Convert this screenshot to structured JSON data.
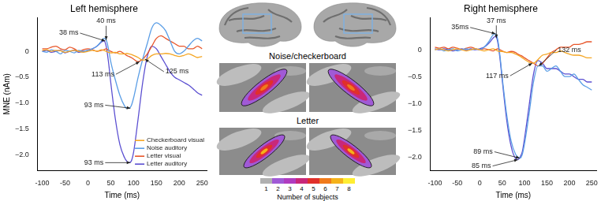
{
  "chart_data": [
    {
      "type": "line",
      "title": "Left hemisphere",
      "x_label": "Time (ms)",
      "y_label": "MNE (nAm)",
      "x": [
        -100,
        -90,
        -80,
        -70,
        -60,
        -50,
        -40,
        -30,
        -20,
        -10,
        0,
        10,
        20,
        30,
        35,
        40,
        45,
        50,
        60,
        70,
        80,
        85,
        90,
        95,
        100,
        110,
        120,
        130,
        140,
        150,
        160,
        170,
        180,
        190,
        200,
        210,
        220,
        230,
        240,
        250
      ],
      "series": [
        {
          "name": "Checkerboard visual",
          "color": "#f5a623",
          "values": [
            0.02,
            0.03,
            0.0,
            0.02,
            0.01,
            -0.02,
            0.0,
            0.02,
            0.0,
            -0.02,
            0.0,
            0.02,
            0.0,
            0.03,
            0.02,
            0.0,
            -0.02,
            -0.03,
            -0.02,
            -0.05,
            -0.05,
            -0.04,
            -0.05,
            -0.06,
            -0.08,
            -0.12,
            -0.17,
            -0.15,
            -0.08,
            -0.05,
            -0.05,
            -0.04,
            -0.05,
            -0.08,
            -0.1,
            -0.08,
            -0.05,
            -0.08,
            -0.12,
            -0.1
          ]
        },
        {
          "name": "Noise auditory",
          "color": "#5b9ee6",
          "values": [
            0.0,
            -0.02,
            0.03,
            0.0,
            -0.05,
            0.02,
            0.0,
            -0.03,
            0.02,
            0.0,
            0.02,
            0.05,
            0.1,
            0.2,
            0.25,
            0.22,
            0.05,
            -0.2,
            -0.55,
            -0.85,
            -1.05,
            -1.1,
            -1.1,
            -1.05,
            -0.9,
            -0.5,
            -0.15,
            0.15,
            0.45,
            0.55,
            0.5,
            0.4,
            0.2,
            0.0,
            -0.05,
            0.0,
            0.1,
            0.2,
            0.25,
            0.2
          ]
        },
        {
          "name": "Letter visual",
          "color": "#e8562a",
          "values": [
            0.05,
            0.05,
            0.08,
            0.1,
            0.05,
            0.03,
            0.08,
            0.05,
            0.0,
            0.03,
            0.05,
            0.03,
            0.0,
            0.02,
            0.03,
            0.05,
            0.02,
            0.0,
            -0.03,
            0.0,
            -0.05,
            -0.08,
            -0.1,
            -0.12,
            -0.15,
            -0.2,
            -0.15,
            -0.05,
            0.1,
            0.25,
            0.3,
            0.25,
            0.2,
            0.15,
            0.1,
            0.1,
            0.05,
            0.05,
            0.1,
            0.05
          ]
        },
        {
          "name": "Letter auditory",
          "color": "#5b4fd1",
          "values": [
            0.0,
            0.02,
            -0.02,
            0.0,
            0.02,
            -0.03,
            0.0,
            0.02,
            -0.02,
            0.0,
            0.02,
            0.05,
            0.1,
            0.18,
            0.2,
            0.1,
            -0.2,
            -0.6,
            -1.3,
            -1.8,
            -2.05,
            -2.12,
            -2.15,
            -2.12,
            -1.95,
            -1.3,
            -0.6,
            -0.1,
            0.1,
            0.05,
            -0.1,
            -0.25,
            -0.4,
            -0.5,
            -0.55,
            -0.6,
            -0.65,
            -0.72,
            -0.8,
            -0.85
          ]
        }
      ],
      "xlim": [
        -110,
        260
      ],
      "xticks": [
        -100,
        -50,
        0,
        50,
        100,
        150,
        200,
        250
      ],
      "ylim": [
        -2.3,
        0.65
      ],
      "yticks": [
        {
          "value": -2,
          "label": "−2.0"
        },
        {
          "value": -1.5,
          "label": "−1.5"
        },
        {
          "value": -1,
          "label": "−1.0"
        },
        {
          "value": -0.5,
          "label": "−0.5"
        },
        0
      ],
      "grid": false,
      "legend": "lower right",
      "annotations": [
        {
          "text": "40 ms",
          "x": 40,
          "y": 0.22
        },
        {
          "text": "38 ms",
          "x": 38,
          "y": 0.2
        },
        {
          "text": "113 ms",
          "x": 113,
          "y": -0.2
        },
        {
          "text": "125 ms",
          "x": 125,
          "y": -0.15
        },
        {
          "text": "93 ms",
          "x": 93,
          "y": -1.1
        },
        {
          "text": "93 ms",
          "x": 93,
          "y": -2.15
        }
      ]
    },
    {
      "type": "line",
      "title": "Right hemisphere",
      "x_label": "Time (ms)",
      "x": [
        -100,
        -90,
        -80,
        -70,
        -60,
        -50,
        -40,
        -30,
        -20,
        -10,
        0,
        10,
        20,
        30,
        35,
        40,
        45,
        50,
        60,
        70,
        80,
        85,
        90,
        95,
        100,
        110,
        120,
        130,
        140,
        150,
        160,
        170,
        180,
        190,
        200,
        210,
        220,
        230,
        240,
        250
      ],
      "series": [
        {
          "color": "#f5a623",
          "values": [
            0.0,
            0.02,
            0.0,
            -0.02,
            0.0,
            0.02,
            0.0,
            -0.02,
            0.0,
            0.02,
            0.0,
            -0.02,
            0.0,
            0.02,
            0.0,
            -0.02,
            -0.03,
            -0.03,
            -0.05,
            -0.05,
            -0.08,
            -0.1,
            -0.12,
            -0.15,
            -0.18,
            -0.23,
            -0.25,
            -0.18,
            -0.1,
            -0.08,
            -0.05,
            -0.05,
            -0.02,
            -0.05,
            -0.08,
            -0.1,
            -0.1,
            -0.12,
            -0.15,
            -0.15
          ]
        },
        {
          "color": "#5b9ee6",
          "values": [
            0.0,
            0.02,
            -0.02,
            0.0,
            0.02,
            -0.02,
            0.0,
            0.02,
            0.0,
            0.02,
            0.0,
            0.05,
            0.15,
            0.28,
            0.3,
            0.2,
            -0.1,
            -0.5,
            -1.2,
            -1.7,
            -1.95,
            -2.0,
            -2.02,
            -1.95,
            -1.75,
            -1.2,
            -0.6,
            -0.3,
            -0.3,
            -0.4,
            -0.35,
            -0.3,
            -0.4,
            -0.5,
            -0.5,
            -0.45,
            -0.55,
            -0.65,
            -0.7,
            -0.75
          ]
        },
        {
          "color": "#e8562a",
          "values": [
            0.05,
            0.03,
            0.05,
            0.02,
            0.05,
            0.03,
            0.0,
            0.03,
            0.05,
            0.02,
            0.0,
            0.02,
            0.0,
            -0.02,
            0.0,
            0.02,
            0.0,
            -0.02,
            -0.05,
            -0.03,
            -0.05,
            -0.08,
            -0.1,
            -0.12,
            -0.15,
            -0.2,
            -0.25,
            -0.3,
            -0.25,
            -0.15,
            -0.05,
            0.0,
            0.05,
            0.05,
            0.05,
            0.1,
            0.1,
            0.12,
            0.15,
            0.15
          ]
        },
        {
          "color": "#5b4fd1",
          "values": [
            0.02,
            0.0,
            0.02,
            0.0,
            -0.02,
            0.0,
            0.02,
            0.0,
            0.02,
            0.0,
            0.02,
            0.05,
            0.12,
            0.22,
            0.25,
            0.15,
            -0.15,
            -0.55,
            -1.3,
            -1.8,
            -2.03,
            -2.05,
            -2.0,
            -1.9,
            -1.65,
            -1.05,
            -0.45,
            -0.2,
            -0.25,
            -0.35,
            -0.35,
            -0.35,
            -0.4,
            -0.45,
            -0.45,
            -0.5,
            -0.55,
            -0.55,
            -0.6,
            -0.6
          ]
        }
      ],
      "xlim": [
        -110,
        260
      ],
      "xticks": [
        -100,
        -50,
        0,
        50,
        100,
        150,
        200,
        250
      ],
      "ylim": [
        -2.25,
        0.6
      ],
      "yticks": [
        {
          "value": -2,
          "label": "−2.0"
        },
        {
          "value": -1.5,
          "label": "−1.5"
        },
        {
          "value": -1,
          "label": "−1.0"
        },
        {
          "value": -0.5,
          "label": "−0.5"
        },
        0
      ],
      "grid": false,
      "annotations": [
        {
          "text": "37 ms",
          "x": 37,
          "y": 0.22
        },
        {
          "text": "35ms",
          "x": 35,
          "y": 0.3
        },
        {
          "text": "117 ms",
          "x": 117,
          "y": -0.25
        },
        {
          "text": "132 ms",
          "x": 132,
          "y": -0.3
        },
        {
          "text": "85 ms",
          "x": 85,
          "y": -2.05
        },
        {
          "text": "89 ms",
          "x": 89,
          "y": -2.02
        }
      ]
    }
  ],
  "brain_panel": {
    "rows": [
      "Noise/checkerboard",
      "Letter"
    ],
    "colorbar": {
      "title": "Number of subjects",
      "ticks": [
        1,
        2,
        3,
        4,
        5,
        6,
        7,
        8
      ],
      "colors": [
        "#b0b0b0",
        "#a05ad6",
        "#b03cc0",
        "#c8287a",
        "#e0302a",
        "#f07a1a",
        "#f5b21a",
        "#ffee33"
      ]
    }
  }
}
